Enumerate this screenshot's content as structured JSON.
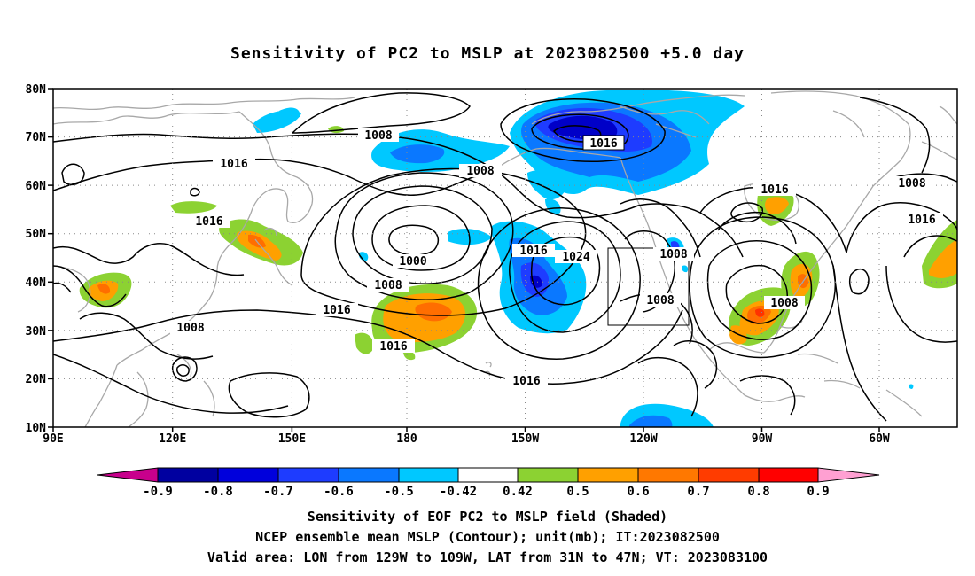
{
  "title": "Sensitivity of PC2 to MSLP at 2023082500 +5.0 day",
  "map": {
    "lat_labels": [
      "80N",
      "70N",
      "60N",
      "50N",
      "40N",
      "30N",
      "20N",
      "10N"
    ],
    "lon_labels": [
      "90E",
      "120E",
      "150E",
      "180",
      "150W",
      "120W",
      "90W",
      "60W"
    ],
    "contour_labels": [
      "1008",
      "1016",
      "1016",
      "1016",
      "1008",
      "1008",
      "1000",
      "1008",
      "1016",
      "1016",
      "1024",
      "1016",
      "1016",
      "1008",
      "1008",
      "1008",
      "1016",
      "1008",
      "1016"
    ],
    "colors": {
      "coast": "#a8a8a8",
      "contour": "#000000",
      "dark_blue": "#0000c8",
      "blue": "#1e3cff",
      "mid_blue": "#0a78ff",
      "light_blue": "#00c8ff",
      "green": "#8cd232",
      "orange": "#ffa000",
      "dark_orange": "#ff6e00",
      "red": "#ff3200"
    }
  },
  "colorbar": {
    "labels": [
      "-0.9",
      "-0.8",
      "-0.7",
      "-0.6",
      "-0.5",
      "-0.42",
      "0.42",
      "0.5",
      "0.6",
      "0.7",
      "0.8",
      "0.9"
    ],
    "colors": [
      "#c8008c",
      "#0000a0",
      "#0000dc",
      "#1e3cff",
      "#0a78ff",
      "#00c8ff",
      "#ffffff",
      "#8cd232",
      "#ffa000",
      "#ff7800",
      "#ff3c00",
      "#ff0000",
      "#ffa0d2"
    ]
  },
  "captions": {
    "line1": "Sensitivity of EOF PC2 to MSLP field (Shaded)",
    "line2": "NCEP ensemble mean MSLP (Contour); unit(mb); IT:2023082500",
    "line3": "Valid area: LON from 129W to 109W, LAT from 31N to 47N; VT: 2023083100"
  }
}
